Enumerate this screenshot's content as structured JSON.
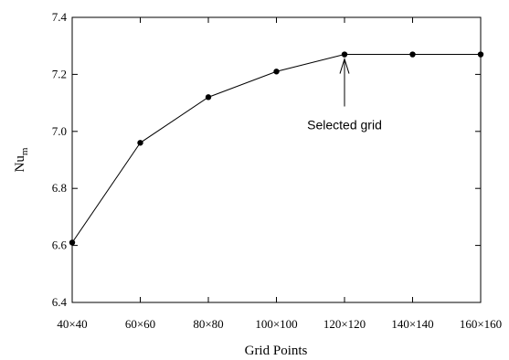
{
  "chart_data": {
    "type": "line",
    "categories": [
      "40×40",
      "60×60",
      "80×80",
      "100×100",
      "120×120",
      "140×140",
      "160×160"
    ],
    "series": [
      {
        "values": [
          6.61,
          6.96,
          7.12,
          7.21,
          7.27,
          7.27,
          7.27
        ]
      }
    ],
    "xlabel": "Grid Points",
    "ylabel_main": "Nu",
    "ylabel_sub": "m",
    "ylim": [
      6.4,
      7.4
    ],
    "yticks": [
      "6.4",
      "6.6",
      "6.8",
      "7.0",
      "7.2",
      "7.4"
    ],
    "grid": false,
    "annotation": {
      "text": "Selected grid",
      "category": "120×120"
    },
    "colors": {
      "line": "#000000",
      "marker": "#000000"
    }
  }
}
